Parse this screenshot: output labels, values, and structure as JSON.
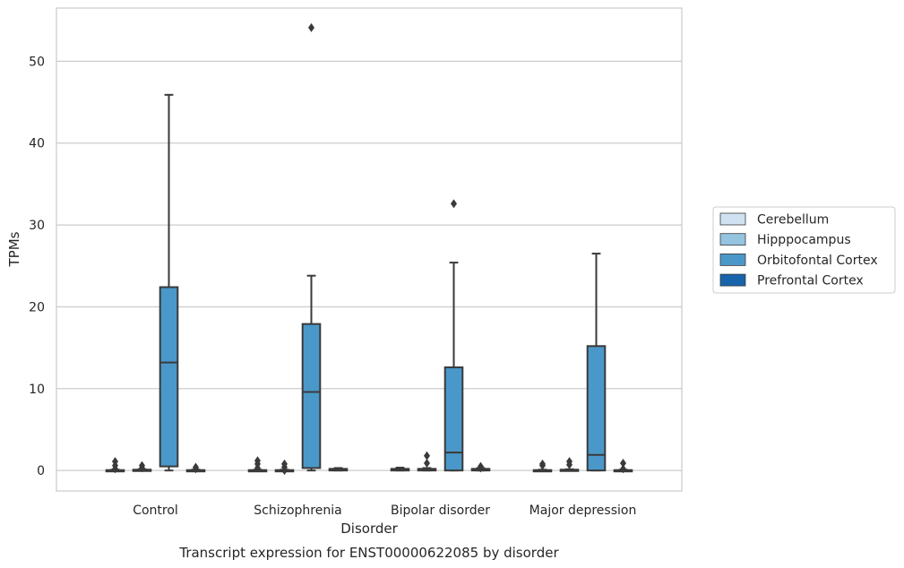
{
  "caption": "Transcript expression for ENST00000622085 by disorder",
  "chart_data": {
    "type": "box",
    "xlabel": "Disorder",
    "ylabel": "TPMs",
    "ylim": [
      -2.5,
      56.5
    ],
    "yticks": [
      0,
      10,
      20,
      30,
      40,
      50
    ],
    "categories": [
      "Control",
      "Schizophrenia",
      "Bipolar disorder",
      "Major depression"
    ],
    "grid": "horizontal",
    "legend_position": "right",
    "series": [
      {
        "name": "Cerebellum",
        "color": "#d0e1f2",
        "boxes": [
          {
            "category": "Control",
            "q1": 0,
            "median": 0,
            "q3": 0.05,
            "whisker_low": 0,
            "whisker_high": 0.1,
            "outliers": [
              0.2,
              0.6,
              1.1
            ]
          },
          {
            "category": "Schizophrenia",
            "q1": 0,
            "median": 0,
            "q3": 0.05,
            "whisker_low": 0,
            "whisker_high": 0.1,
            "outliers": [
              0.3,
              0.8,
              1.2
            ]
          },
          {
            "category": "Bipolar disorder",
            "q1": 0,
            "median": 0.05,
            "q3": 0.2,
            "whisker_low": 0,
            "whisker_high": 0.35,
            "outliers": []
          },
          {
            "category": "Major depression",
            "q1": 0,
            "median": 0,
            "q3": 0.05,
            "whisker_low": 0,
            "whisker_high": 0.1,
            "outliers": [
              0.6,
              0.8
            ]
          }
        ]
      },
      {
        "name": "Hipppocampus",
        "color": "#94c4df",
        "boxes": [
          {
            "category": "Control",
            "q1": 0,
            "median": 0,
            "q3": 0.1,
            "whisker_low": 0,
            "whisker_high": 0.15,
            "outliers": [
              0.3,
              0.6
            ]
          },
          {
            "category": "Schizophrenia",
            "q1": 0,
            "median": 0,
            "q3": 0.05,
            "whisker_low": 0,
            "whisker_high": 0.1,
            "outliers": [
              0,
              0.4,
              0.8
            ]
          },
          {
            "category": "Bipolar disorder",
            "q1": 0,
            "median": 0.05,
            "q3": 0.2,
            "whisker_low": 0,
            "whisker_high": 0.3,
            "outliers": [
              0.9,
              1.8
            ]
          },
          {
            "category": "Major depression",
            "q1": 0,
            "median": 0,
            "q3": 0.1,
            "whisker_low": 0,
            "whisker_high": 0.15,
            "outliers": [
              0.7,
              1.1
            ]
          }
        ]
      },
      {
        "name": "Orbitofontal Cortex",
        "color": "#4a98c9",
        "boxes": [
          {
            "category": "Control",
            "q1": 0.5,
            "median": 13.2,
            "q3": 22.4,
            "whisker_low": 0,
            "whisker_high": 45.9,
            "outliers": []
          },
          {
            "category": "Schizophrenia",
            "q1": 0.3,
            "median": 9.6,
            "q3": 17.9,
            "whisker_low": 0,
            "whisker_high": 23.8,
            "outliers": [
              54.1
            ]
          },
          {
            "category": "Bipolar disorder",
            "q1": 0,
            "median": 2.2,
            "q3": 12.6,
            "whisker_low": 0,
            "whisker_high": 25.4,
            "outliers": [
              32.6
            ]
          },
          {
            "category": "Major depression",
            "q1": 0,
            "median": 1.9,
            "q3": 15.2,
            "whisker_low": 0,
            "whisker_high": 26.5,
            "outliers": []
          }
        ]
      },
      {
        "name": "Prefrontal Cortex",
        "color": "#1764ab",
        "boxes": [
          {
            "category": "Control",
            "q1": 0,
            "median": 0,
            "q3": 0.05,
            "whisker_low": 0,
            "whisker_high": 0.1,
            "outliers": [
              0.2,
              0.4
            ]
          },
          {
            "category": "Schizophrenia",
            "q1": 0,
            "median": 0.05,
            "q3": 0.2,
            "whisker_low": 0,
            "whisker_high": 0.3,
            "outliers": []
          },
          {
            "category": "Bipolar disorder",
            "q1": 0,
            "median": 0.05,
            "q3": 0.2,
            "whisker_low": 0,
            "whisker_high": 0.3,
            "outliers": [
              0.3,
              0.5
            ]
          },
          {
            "category": "Major depression",
            "q1": 0,
            "median": 0,
            "q3": 0.05,
            "whisker_low": 0,
            "whisker_high": 0.1,
            "outliers": [
              0.2,
              0.9
            ]
          }
        ]
      }
    ]
  }
}
